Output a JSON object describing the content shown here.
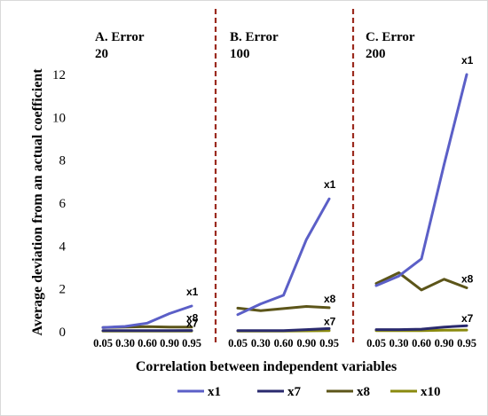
{
  "chart_data": {
    "type": "line",
    "ylabel": "Average deviation from an actual coefficient",
    "xlabel": "Correlation between independent variables",
    "ylim": [
      0,
      12
    ],
    "yticks": [
      "0",
      "2",
      "4",
      "6",
      "8",
      "10",
      "12"
    ],
    "grid": false,
    "legend_position": "bottom",
    "legend": [
      "x1",
      "x7",
      "x8",
      "x10"
    ],
    "colors": {
      "x1": "#5b5fc7",
      "x7": "#2a2a6e",
      "x8": "#5c5519",
      "x10": "#8a8a0e",
      "divider": "#9b2a1e"
    },
    "panels": [
      {
        "title_line1": "A. Error",
        "title_line2": "20",
        "categories": [
          "0.05",
          "0.30",
          "0.60",
          "0.90",
          "0.95"
        ],
        "series": [
          {
            "name": "x1",
            "values": [
              0.2,
              0.25,
              0.4,
              0.85,
              1.2
            ]
          },
          {
            "name": "x7",
            "values": [
              0.05,
              0.05,
              0.05,
              0.05,
              0.06
            ]
          },
          {
            "name": "x8",
            "values": [
              0.2,
              0.22,
              0.24,
              0.22,
              0.22
            ]
          },
          {
            "name": "x10",
            "values": [
              0.03,
              0.03,
              0.03,
              0.03,
              0.03
            ]
          }
        ],
        "end_labels": [
          {
            "text": "x1",
            "series": "x1"
          },
          {
            "text": "x8",
            "series": "x8"
          },
          {
            "text": "x7",
            "series": "x7"
          }
        ]
      },
      {
        "title_line1": "B. Error",
        "title_line2": "100",
        "categories": [
          "0.05",
          "0.30",
          "0.60",
          "0.90",
          "0.95"
        ],
        "series": [
          {
            "name": "x1",
            "values": [
              0.8,
              1.3,
              1.7,
              4.3,
              6.2
            ]
          },
          {
            "name": "x7",
            "values": [
              0.05,
              0.05,
              0.05,
              0.1,
              0.15
            ]
          },
          {
            "name": "x8",
            "values": [
              1.1,
              0.98,
              1.08,
              1.18,
              1.12
            ]
          },
          {
            "name": "x10",
            "values": [
              0.03,
              0.03,
              0.03,
              0.04,
              0.05
            ]
          }
        ],
        "end_labels": [
          {
            "text": "x1",
            "series": "x1"
          },
          {
            "text": "x8",
            "series": "x8"
          },
          {
            "text": "x7",
            "series": "x7"
          }
        ]
      },
      {
        "title_line1": "C. Error",
        "title_line2": "200",
        "categories": [
          "0.05",
          "0.30",
          "0.60",
          "0.90",
          "0.95"
        ],
        "series": [
          {
            "name": "x1",
            "values": [
              2.15,
              2.6,
              3.4,
              7.8,
              12.0
            ]
          },
          {
            "name": "x7",
            "values": [
              0.1,
              0.1,
              0.12,
              0.22,
              0.28
            ]
          },
          {
            "name": "x8",
            "values": [
              2.25,
              2.75,
              1.95,
              2.45,
              2.05
            ]
          },
          {
            "name": "x10",
            "values": [
              0.05,
              0.05,
              0.05,
              0.07,
              0.08
            ]
          }
        ],
        "end_labels": [
          {
            "text": "x1",
            "series": "x1"
          },
          {
            "text": "x8",
            "series": "x8"
          },
          {
            "text": "x7",
            "series": "x7"
          }
        ]
      }
    ]
  }
}
